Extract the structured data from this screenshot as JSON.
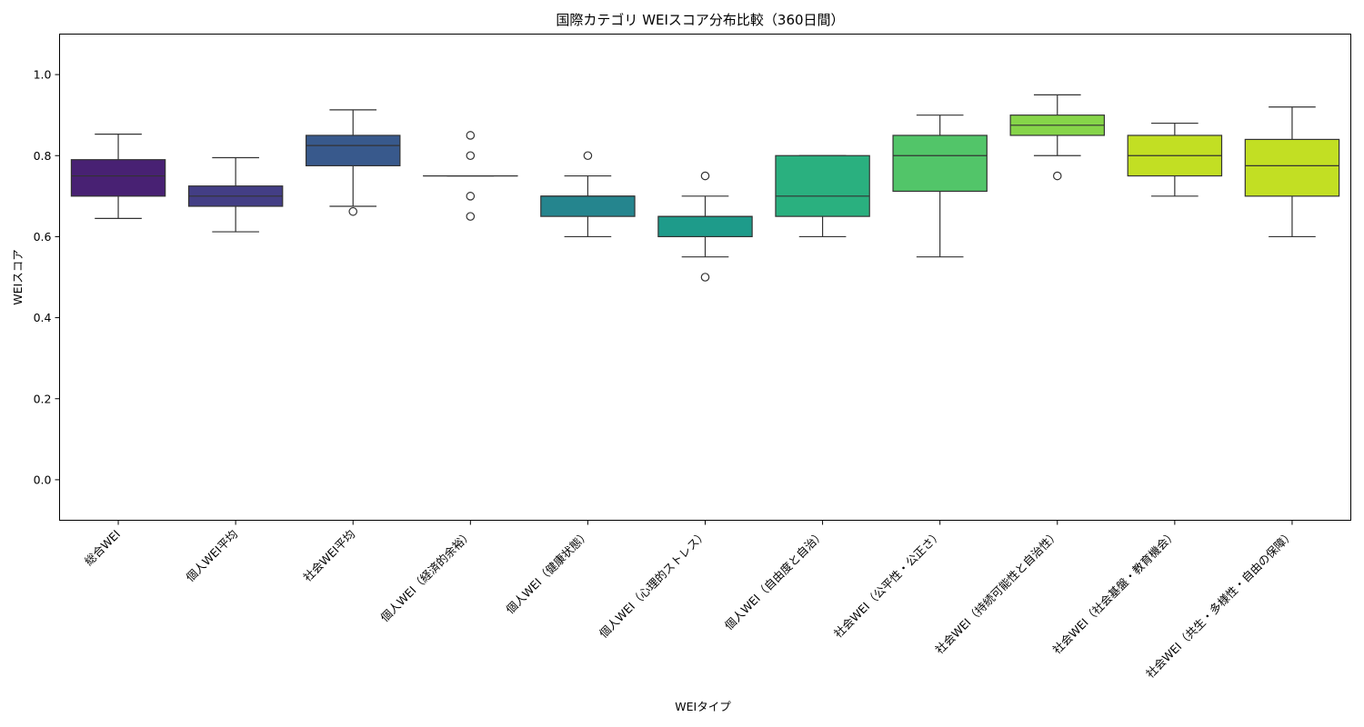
{
  "chart_data": {
    "type": "box",
    "title": "国際カテゴリ WEIスコア分布比較（360日間）",
    "xlabel": "WEIタイプ",
    "ylabel": "WEIスコア",
    "ylim": [
      -0.1,
      1.1
    ],
    "yticks": [
      "0.0",
      "0.2",
      "0.4",
      "0.6",
      "0.8",
      "1.0"
    ],
    "grid": false,
    "legend": "none",
    "categories": [
      "総合WEI",
      "個人WEI平均",
      "社会WEI平均",
      "個人WEI（経済的余裕）",
      "個人WEI（健康状態）",
      "個人WEI（心理的ストレス）",
      "個人WEI（自由度と自治）",
      "社会WEI（公平性・公正さ）",
      "社会WEI（持続可能性と自治性）",
      "社会WEI（社会基盤・教育機会）",
      "社会WEI（共生・多様性・自由の保障）"
    ],
    "colors": [
      "#482173",
      "#433e85",
      "#38598c",
      "#2d708e",
      "#25858e",
      "#1e9b8a",
      "#2ab07f",
      "#52c569",
      "#86d549",
      "#c2df23"
    ],
    "boxes": [
      {
        "whisker_low": 0.645,
        "q1": 0.7,
        "median": 0.75,
        "q3": 0.79,
        "whisker_high": 0.853,
        "outliers": []
      },
      {
        "whisker_low": 0.612,
        "q1": 0.675,
        "median": 0.7,
        "q3": 0.725,
        "whisker_high": 0.795,
        "outliers": []
      },
      {
        "whisker_low": 0.675,
        "q1": 0.775,
        "median": 0.825,
        "q3": 0.85,
        "whisker_high": 0.913,
        "outliers": [
          0.662
        ]
      },
      {
        "whisker_low": 0.75,
        "q1": 0.75,
        "median": 0.75,
        "q3": 0.75,
        "whisker_high": 0.75,
        "outliers": [
          0.85,
          0.8,
          0.7,
          0.65
        ]
      },
      {
        "whisker_low": 0.6,
        "q1": 0.65,
        "median": 0.7,
        "q3": 0.7,
        "whisker_high": 0.75,
        "outliers": [
          0.8
        ]
      },
      {
        "whisker_low": 0.55,
        "q1": 0.6,
        "median": 0.65,
        "q3": 0.65,
        "whisker_high": 0.7,
        "outliers": [
          0.75,
          0.5
        ]
      },
      {
        "whisker_low": 0.6,
        "q1": 0.65,
        "median": 0.7,
        "q3": 0.8,
        "whisker_high": 0.8,
        "outliers": []
      },
      {
        "whisker_low": 0.55,
        "q1": 0.712,
        "median": 0.8,
        "q3": 0.85,
        "whisker_high": 0.9,
        "outliers": []
      },
      {
        "whisker_low": 0.8,
        "q1": 0.85,
        "median": 0.875,
        "q3": 0.9,
        "whisker_high": 0.95,
        "outliers": [
          0.75
        ]
      },
      {
        "whisker_low": 0.7,
        "q1": 0.75,
        "median": 0.8,
        "q3": 0.85,
        "whisker_high": 0.88,
        "outliers": []
      },
      {
        "whisker_low": 0.6,
        "q1": 0.7,
        "median": 0.775,
        "q3": 0.84,
        "whisker_high": 0.92,
        "outliers": []
      }
    ],
    "box_colors_extra": [
      "#c2df23"
    ]
  }
}
